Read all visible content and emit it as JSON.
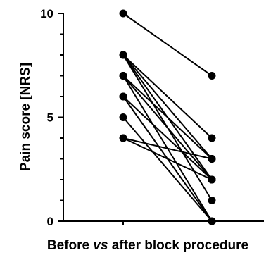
{
  "chart_data": {
    "type": "scatter",
    "title": "",
    "xlabel_parts": [
      {
        "text": "Before ",
        "italic": false
      },
      {
        "text": "vs",
        "italic": true
      },
      {
        "text": " after block procedure",
        "italic": false
      }
    ],
    "ylabel": "Pain score [NRS]",
    "ylim": [
      0,
      10
    ],
    "yticks": [
      "0",
      "5",
      "10"
    ],
    "grid": false,
    "legend": "none",
    "pairs": [
      {
        "before": 10,
        "after": 7
      },
      {
        "before": 8,
        "after": 4
      },
      {
        "before": 8,
        "after": 3
      },
      {
        "before": 8,
        "after": 2
      },
      {
        "before": 8,
        "after": 1
      },
      {
        "before": 7,
        "after": 3
      },
      {
        "before": 7,
        "after": 2
      },
      {
        "before": 7,
        "after": 0
      },
      {
        "before": 6,
        "after": 2
      },
      {
        "before": 6,
        "after": 0
      },
      {
        "before": 5,
        "after": 0
      },
      {
        "before": 4,
        "after": 3
      },
      {
        "before": 4,
        "after": 2
      }
    ]
  }
}
